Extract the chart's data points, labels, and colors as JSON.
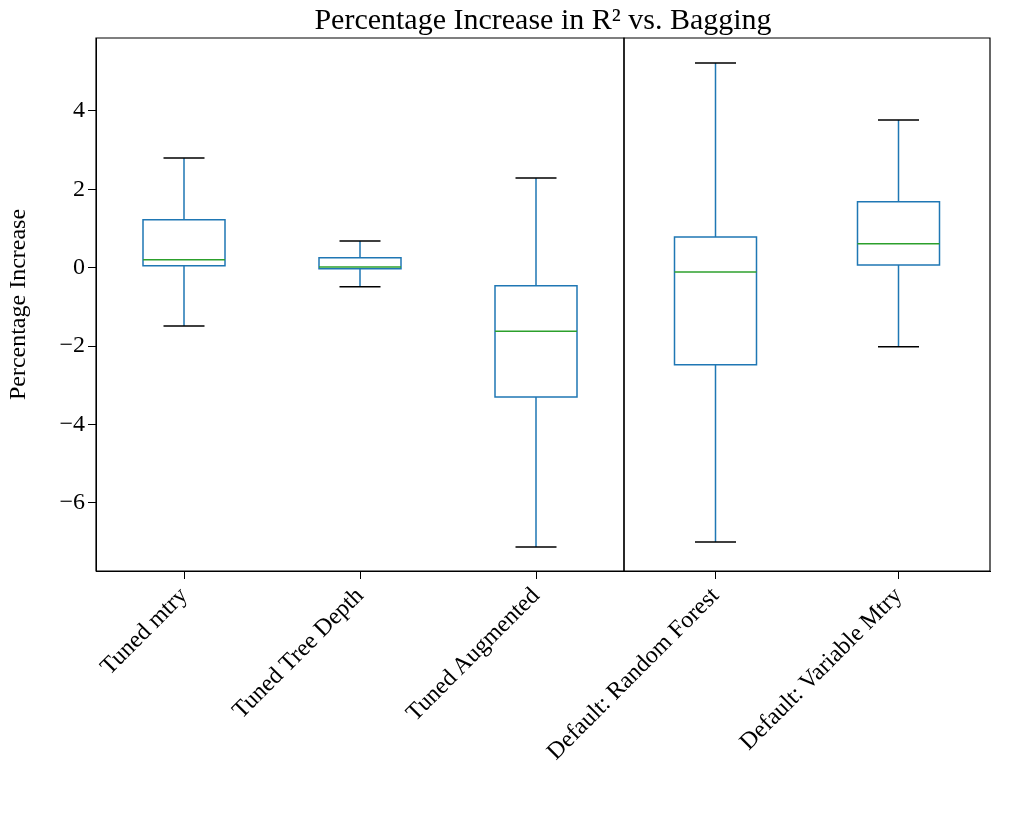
{
  "chart_data": [
    {
      "type": "box",
      "title": "Percentage Increase in R² vs. Bagging",
      "ylabel": "Percentage Increase",
      "categories": [
        "Tuned mtry",
        "Tuned Tree Depth",
        "Tuned Augmented"
      ],
      "series": [
        {
          "color": "#1f77b4",
          "boxes": [
            {
              "low": -1.49,
              "q1": 0.05,
              "median": 0.2,
              "q3": 1.22,
              "high": 2.8
            },
            {
              "low": -0.49,
              "q1": -0.03,
              "median": 0.02,
              "q3": 0.25,
              "high": 0.68
            },
            {
              "low": -7.13,
              "q1": -3.3,
              "median": -1.62,
              "q3": -0.46,
              "high": 2.29
            }
          ]
        }
      ],
      "ylim": [
        -7.74,
        5.86
      ],
      "yticks": [
        {
          "value": -6,
          "label": "−6"
        },
        {
          "value": -4,
          "label": "−4"
        },
        {
          "value": -2,
          "label": "−2"
        },
        0,
        2,
        4
      ],
      "grid": false,
      "legend": false
    },
    {
      "type": "box",
      "categories": [
        "Default: Random Forest",
        "Default: Variable Mtry"
      ],
      "series": [
        {
          "color": "#1f77b4",
          "boxes": [
            {
              "low": -7.0,
              "q1": -2.48,
              "median": -0.11,
              "q3": 0.78,
              "high": 5.22
            },
            {
              "low": -2.02,
              "q1": 0.07,
              "median": 0.61,
              "q3": 1.68,
              "high": 3.77
            }
          ]
        }
      ],
      "ylim": [
        -7.74,
        5.86
      ],
      "tick_labels": "x",
      "grid": false,
      "legend": false
    }
  ]
}
